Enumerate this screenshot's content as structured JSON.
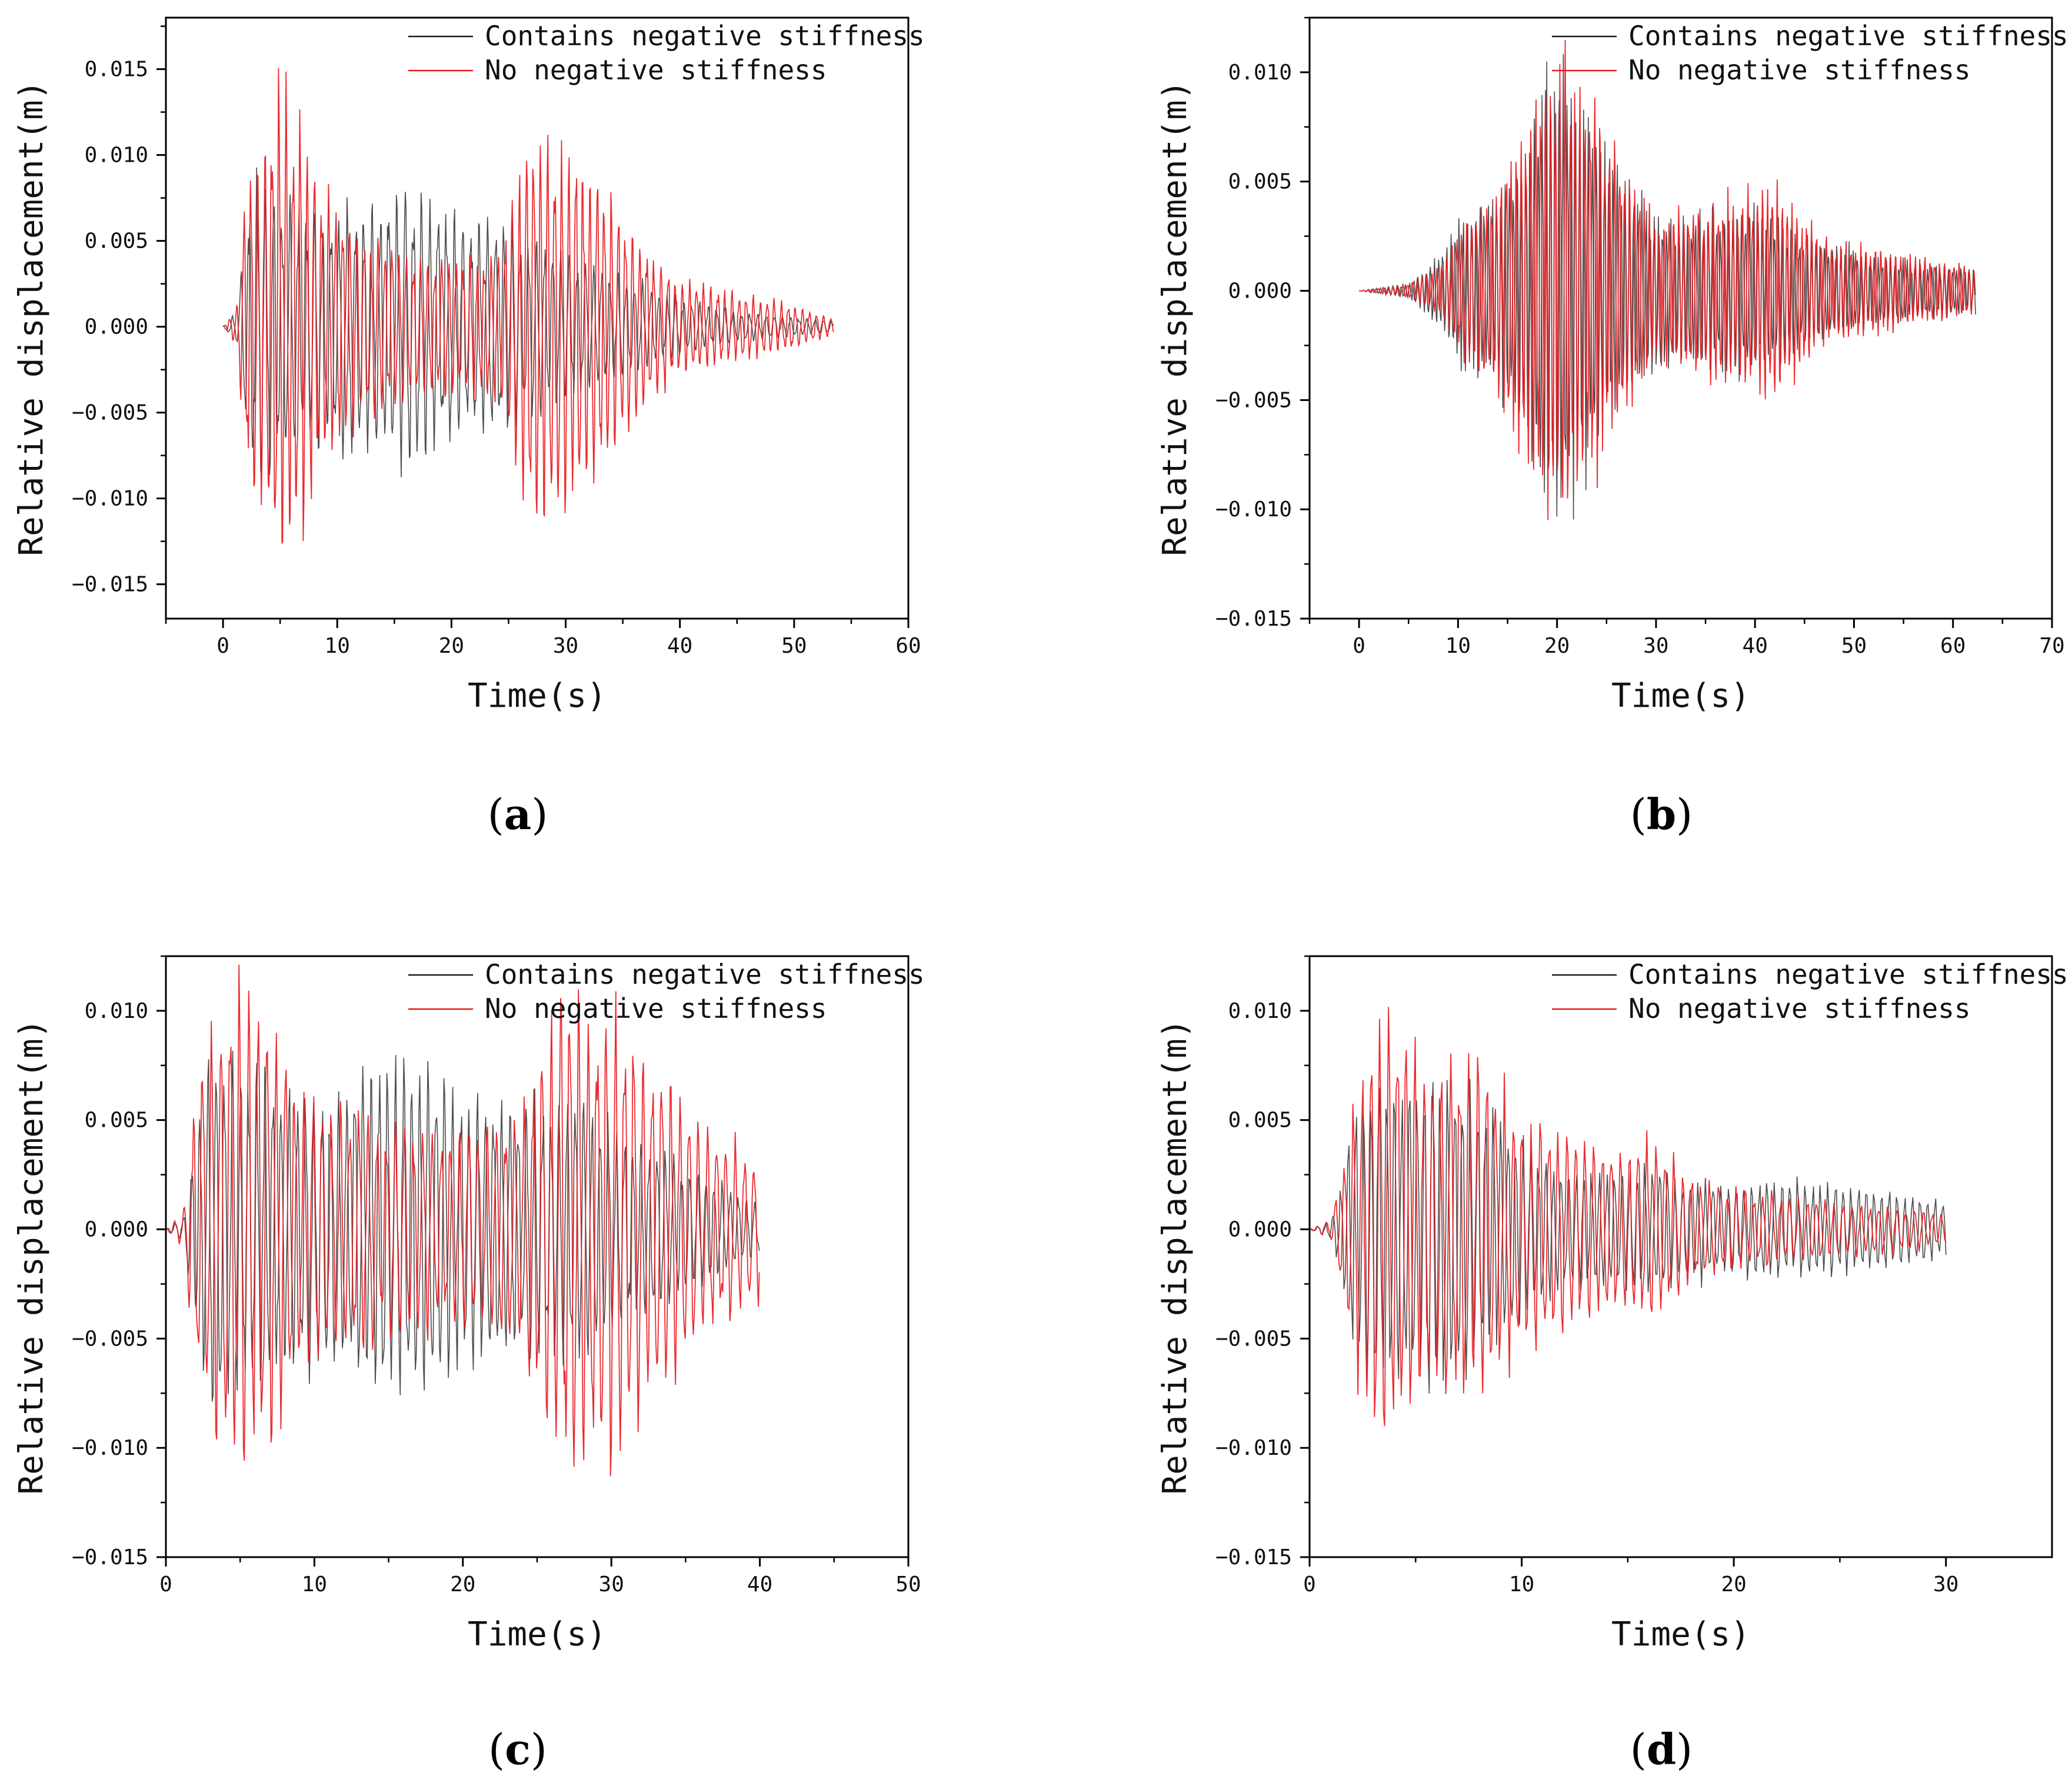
{
  "figure": {
    "series_names": [
      "Contains negative stiffness",
      "No negative stiffness"
    ],
    "series_colors": [
      "#1a1a1a",
      "#e8191e"
    ]
  },
  "chart_data": [
    {
      "id": "a",
      "type": "line",
      "caption_letter": "a",
      "xlabel": "Time(s)",
      "ylabel": "Relative displacement(m)",
      "xlim": [
        -5,
        60
      ],
      "ylim": [
        -0.017,
        0.018
      ],
      "xticks": [
        0,
        10,
        20,
        30,
        40,
        50,
        60
      ],
      "xtick_labels": [
        "0",
        "10",
        "20",
        "30",
        "40",
        "50",
        "60"
      ],
      "yticks": [
        -0.015,
        -0.01,
        -0.005,
        0,
        0.005,
        0.01,
        0.015
      ],
      "ytick_labels": [
        "−0.015",
        "−0.010",
        "−0.005",
        "0.000",
        "0.005",
        "0.010",
        "0.015"
      ],
      "legend": {
        "location": "top-right",
        "entries": [
          "Contains negative stiffness",
          "No negative stiffness"
        ]
      },
      "series": [
        {
          "name": "Contains negative stiffness",
          "color": "#1a1a1a",
          "duration": 53.5,
          "start": 0,
          "period": 0.72,
          "envelope": {
            "t": [
              0,
              1.2,
              2,
              3,
              5,
              8,
              12,
              16,
              20,
              25,
              28,
              32,
              36,
              40,
              45,
              50,
              53.5
            ],
            "a": [
              0,
              0.0008,
              0.006,
              0.0085,
              0.007,
              0.006,
              0.0065,
              0.0075,
              0.006,
              0.0055,
              0.0045,
              0.0035,
              0.0025,
              0.0015,
              0.0008,
              0.0005,
              0.0003
            ]
          }
        },
        {
          "name": "No negative stiffness",
          "color": "#e8191e",
          "duration": 53.5,
          "start": 0,
          "period": 0.62,
          "envelope": {
            "t": [
              0,
              1.2,
              2,
              3,
              5,
              7,
              9,
              12,
              16,
              20,
              24,
              27,
              30,
              33,
              37,
              40,
              45,
              50,
              53.5
            ],
            "a": [
              0,
              0.001,
              0.008,
              0.009,
              0.013,
              0.011,
              0.007,
              0.005,
              0.004,
              0.0035,
              0.004,
              0.0105,
              0.0095,
              0.008,
              0.0045,
              0.0025,
              0.0018,
              0.0012,
              0.0004
            ]
          }
        }
      ]
    },
    {
      "id": "b",
      "type": "line",
      "caption_letter": "b",
      "xlabel": "Time(s)",
      "ylabel": "Relative displacement(m)",
      "xlim": [
        -5,
        70
      ],
      "ylim": [
        -0.015,
        0.0125
      ],
      "xticks": [
        0,
        10,
        20,
        30,
        40,
        50,
        60,
        70
      ],
      "xtick_labels": [
        "0",
        "10",
        "20",
        "30",
        "40",
        "50",
        "60",
        "70"
      ],
      "yticks": [
        -0.015,
        -0.01,
        -0.005,
        0,
        0.005,
        0.01
      ],
      "ytick_labels": [
        "−0.015",
        "−0.010",
        "−0.005",
        "0.000",
        "0.005",
        "0.010"
      ],
      "legend": {
        "location": "top-right",
        "entries": [
          "Contains negative stiffness",
          "No negative stiffness"
        ]
      },
      "series": [
        {
          "name": "Contains negative stiffness",
          "color": "#1a1a1a",
          "duration": 62.3,
          "start": 0,
          "period": 0.42,
          "envelope": {
            "t": [
              0,
              5,
              8,
              10,
              14,
              17,
              20,
              22,
              25,
              28,
              32,
              36,
              40,
              44,
              48,
              52,
              56,
              60,
              62.3
            ],
            "a": [
              0,
              0.0003,
              0.0015,
              0.003,
              0.004,
              0.006,
              0.011,
              0.008,
              0.006,
              0.004,
              0.003,
              0.0032,
              0.0035,
              0.0025,
              0.002,
              0.0015,
              0.0012,
              0.001,
              0.0009
            ]
          }
        },
        {
          "name": "No negative stiffness",
          "color": "#e8191e",
          "duration": 62.3,
          "start": 0,
          "period": 0.5,
          "envelope": {
            "t": [
              0,
              5,
              8,
              10,
              14,
              17,
              20,
              23,
              26,
              30,
              34,
              38,
              42,
              44,
              48,
              52,
              56,
              60,
              62.3
            ],
            "a": [
              0,
              0.0003,
              0.001,
              0.0025,
              0.0045,
              0.0075,
              0.0095,
              0.0085,
              0.006,
              0.003,
              0.0035,
              0.004,
              0.0045,
              0.0035,
              0.002,
              0.0018,
              0.0015,
              0.0012,
              0.001
            ]
          }
        }
      ]
    },
    {
      "id": "c",
      "type": "line",
      "caption_letter": "c",
      "xlabel": "Time(s)",
      "ylabel": "Relative displacement(m)",
      "xlim": [
        0,
        50
      ],
      "ylim": [
        -0.015,
        0.0125
      ],
      "xticks": [
        0,
        10,
        20,
        30,
        40,
        50
      ],
      "xtick_labels": [
        "0",
        "10",
        "20",
        "30",
        "40",
        "50"
      ],
      "yticks": [
        -0.015,
        -0.01,
        -0.005,
        0,
        0.005,
        0.01
      ],
      "ytick_labels": [
        "−0.015",
        "−0.010",
        "−0.005",
        "0.000",
        "0.005",
        "0.010"
      ],
      "legend": {
        "location": "top-right",
        "entries": [
          "Contains negative stiffness",
          "No negative stiffness"
        ]
      },
      "series": [
        {
          "name": "Contains negative stiffness",
          "color": "#1a1a1a",
          "duration": 40,
          "start": 0,
          "period": 0.55,
          "envelope": {
            "t": [
              0,
              1.2,
              2,
              3,
              5,
              8,
              12,
              16,
              20,
              24,
              27,
              30,
              34,
              37,
              40
            ],
            "a": [
              0,
              0.0005,
              0.0045,
              0.008,
              0.007,
              0.006,
              0.006,
              0.0075,
              0.006,
              0.005,
              0.006,
              0.0045,
              0.003,
              0.002,
              0.001
            ]
          }
        },
        {
          "name": "No negative stiffness",
          "color": "#e8191e",
          "duration": 40,
          "start": 0,
          "period": 0.62,
          "envelope": {
            "t": [
              0,
              1.2,
              2,
              3,
              5,
              7,
              9,
              12,
              16,
              20,
              24,
              26.5,
              30,
              33,
              36,
              40
            ],
            "a": [
              0,
              0.0008,
              0.0065,
              0.008,
              0.0105,
              0.009,
              0.006,
              0.005,
              0.0045,
              0.004,
              0.005,
              0.0105,
              0.0095,
              0.007,
              0.0045,
              0.003
            ]
          }
        }
      ]
    },
    {
      "id": "d",
      "type": "line",
      "caption_letter": "d",
      "xlabel": "Time(s)",
      "ylabel": "Relative displacement(m)",
      "xlim": [
        0,
        35
      ],
      "ylim": [
        -0.015,
        0.0125
      ],
      "xticks": [
        0,
        10,
        20,
        30
      ],
      "xtick_labels": [
        "0",
        "10",
        "20",
        "30"
      ],
      "yticks": [
        -0.015,
        -0.01,
        -0.005,
        0,
        0.005,
        0.01
      ],
      "ytick_labels": [
        "−0.015",
        "−0.010",
        "−0.005",
        "0.000",
        "0.005",
        "0.010"
      ],
      "legend": {
        "location": "top-right",
        "entries": [
          "Contains negative stiffness",
          "No negative stiffness"
        ]
      },
      "series": [
        {
          "name": "Contains negative stiffness",
          "color": "#1a1a1a",
          "duration": 30,
          "start": 0,
          "period": 0.36,
          "envelope": {
            "t": [
              0,
              1,
              1.5,
              2,
              3,
              4.5,
              6,
              8,
              10,
              12,
              14,
              16,
              18,
              20,
              22,
              25,
              28,
              30
            ],
            "a": [
              0,
              0.0004,
              0.002,
              0.005,
              0.0065,
              0.0065,
              0.0072,
              0.006,
              0.004,
              0.0025,
              0.0025,
              0.0028,
              0.0022,
              0.002,
              0.0022,
              0.002,
              0.0016,
              0.0012
            ]
          }
        },
        {
          "name": "No negative stiffness",
          "color": "#e8191e",
          "duration": 30,
          "start": 0,
          "period": 0.42,
          "envelope": {
            "t": [
              0,
              1,
              1.5,
              2,
              3,
              4,
              6,
              8,
              10,
              12,
              14,
              16,
              18,
              20,
              22,
              25,
              28,
              30
            ],
            "a": [
              0,
              0.0004,
              0.0025,
              0.005,
              0.0095,
              0.009,
              0.0072,
              0.0075,
              0.005,
              0.0045,
              0.0035,
              0.004,
              0.0025,
              0.0018,
              0.0015,
              0.0012,
              0.001,
              0.0006
            ]
          }
        }
      ]
    }
  ]
}
